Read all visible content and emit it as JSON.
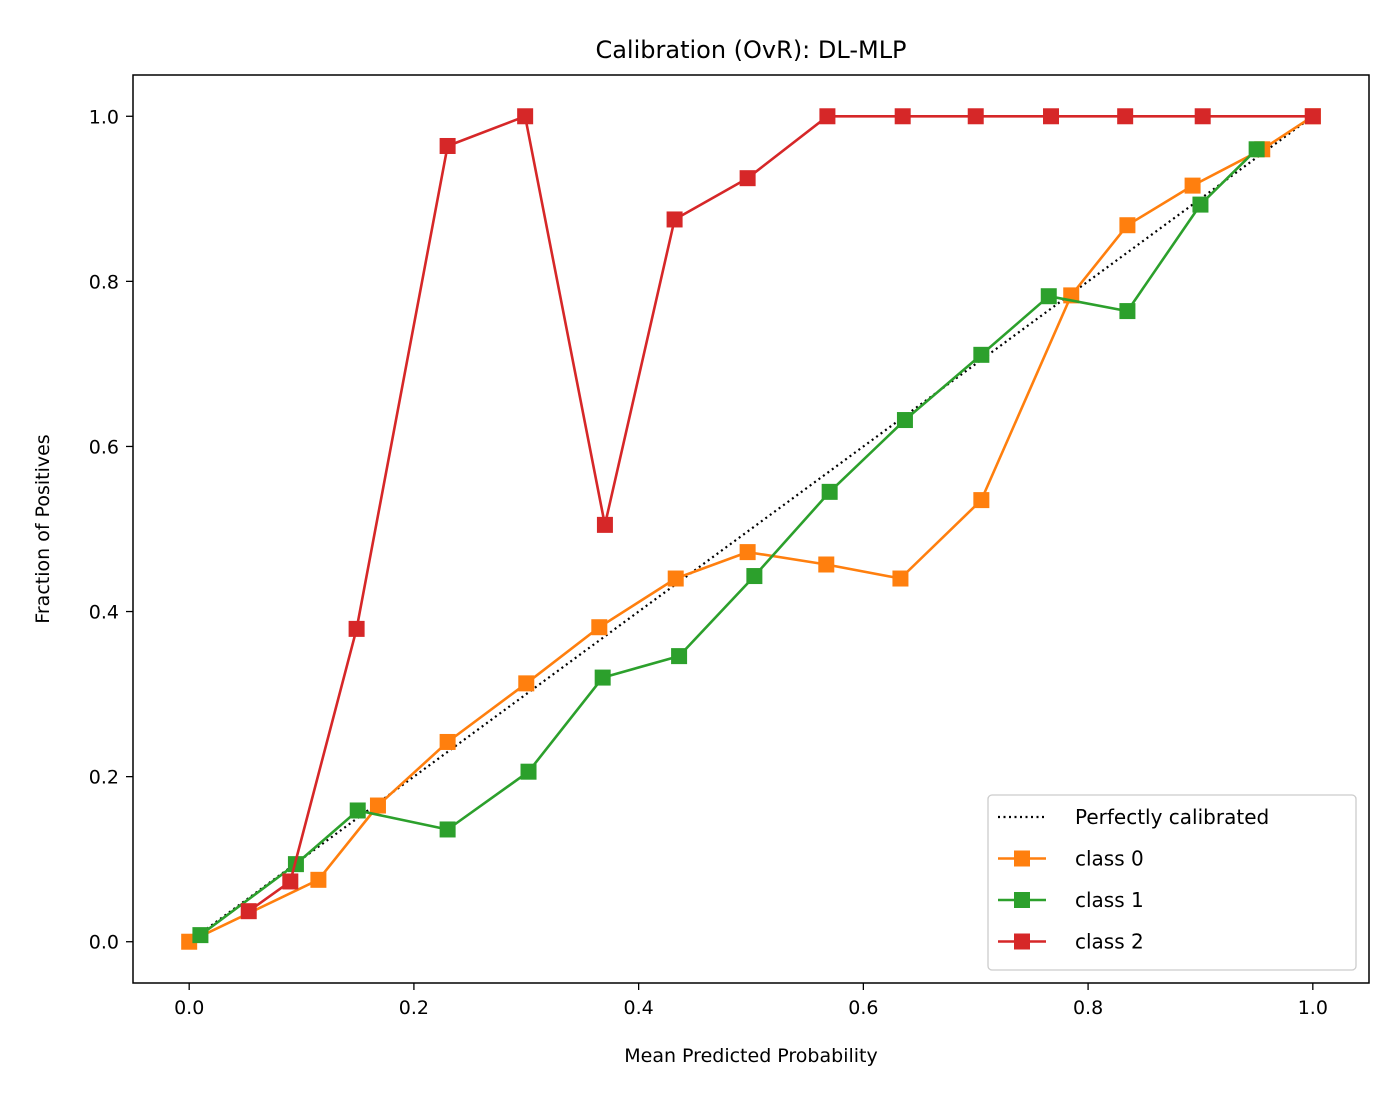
{
  "chart_data": {
    "type": "line",
    "title": "Calibration (OvR): DL-MLP",
    "xlabel": "Mean Predicted Probability",
    "ylabel": "Fraction of Positives",
    "xlim": [
      -0.05,
      1.05
    ],
    "ylim": [
      -0.05,
      1.05
    ],
    "xticks": [
      0.0,
      0.2,
      0.4,
      0.6,
      0.8,
      1.0
    ],
    "yticks": [
      0.0,
      0.2,
      0.4,
      0.6,
      0.8,
      1.0
    ],
    "tick_labels": [
      "0.0",
      "0.2",
      "0.4",
      "0.6",
      "0.8",
      "1.0"
    ],
    "grid": false,
    "legend_position": "bottom-right",
    "reference": {
      "name": "Perfectly calibrated",
      "color": "#000000",
      "x": [
        0,
        1
      ],
      "y": [
        0,
        1
      ]
    },
    "series": [
      {
        "name": "class 0",
        "color": "#ff7f0e",
        "x": [
          0.0,
          0.115,
          0.168,
          0.23,
          0.3,
          0.365,
          0.433,
          0.497,
          0.567,
          0.633,
          0.705,
          0.785,
          0.835,
          0.893,
          0.955,
          1.0
        ],
        "y": [
          0.0,
          0.075,
          0.165,
          0.242,
          0.313,
          0.381,
          0.44,
          0.472,
          0.457,
          0.44,
          0.535,
          0.783,
          0.868,
          0.916,
          0.96,
          1.0
        ]
      },
      {
        "name": "class 1",
        "color": "#2ca02c",
        "x": [
          0.01,
          0.095,
          0.15,
          0.23,
          0.302,
          0.368,
          0.436,
          0.503,
          0.57,
          0.637,
          0.705,
          0.765,
          0.835,
          0.9,
          0.95
        ],
        "y": [
          0.008,
          0.094,
          0.159,
          0.136,
          0.206,
          0.32,
          0.346,
          0.443,
          0.545,
          0.632,
          0.711,
          0.782,
          0.764,
          0.893,
          0.96
        ]
      },
      {
        "name": "class 2",
        "color": "#d62728",
        "x": [
          0.053,
          0.09,
          0.149,
          0.23,
          0.299,
          0.37,
          0.432,
          0.497,
          0.568,
          0.635,
          0.7,
          0.767,
          0.833,
          0.902,
          1.0
        ],
        "y": [
          0.037,
          0.073,
          0.379,
          0.964,
          1.0,
          0.505,
          0.875,
          0.925,
          1.0,
          1.0,
          1.0,
          1.0,
          1.0,
          1.0,
          1.0
        ]
      }
    ]
  }
}
